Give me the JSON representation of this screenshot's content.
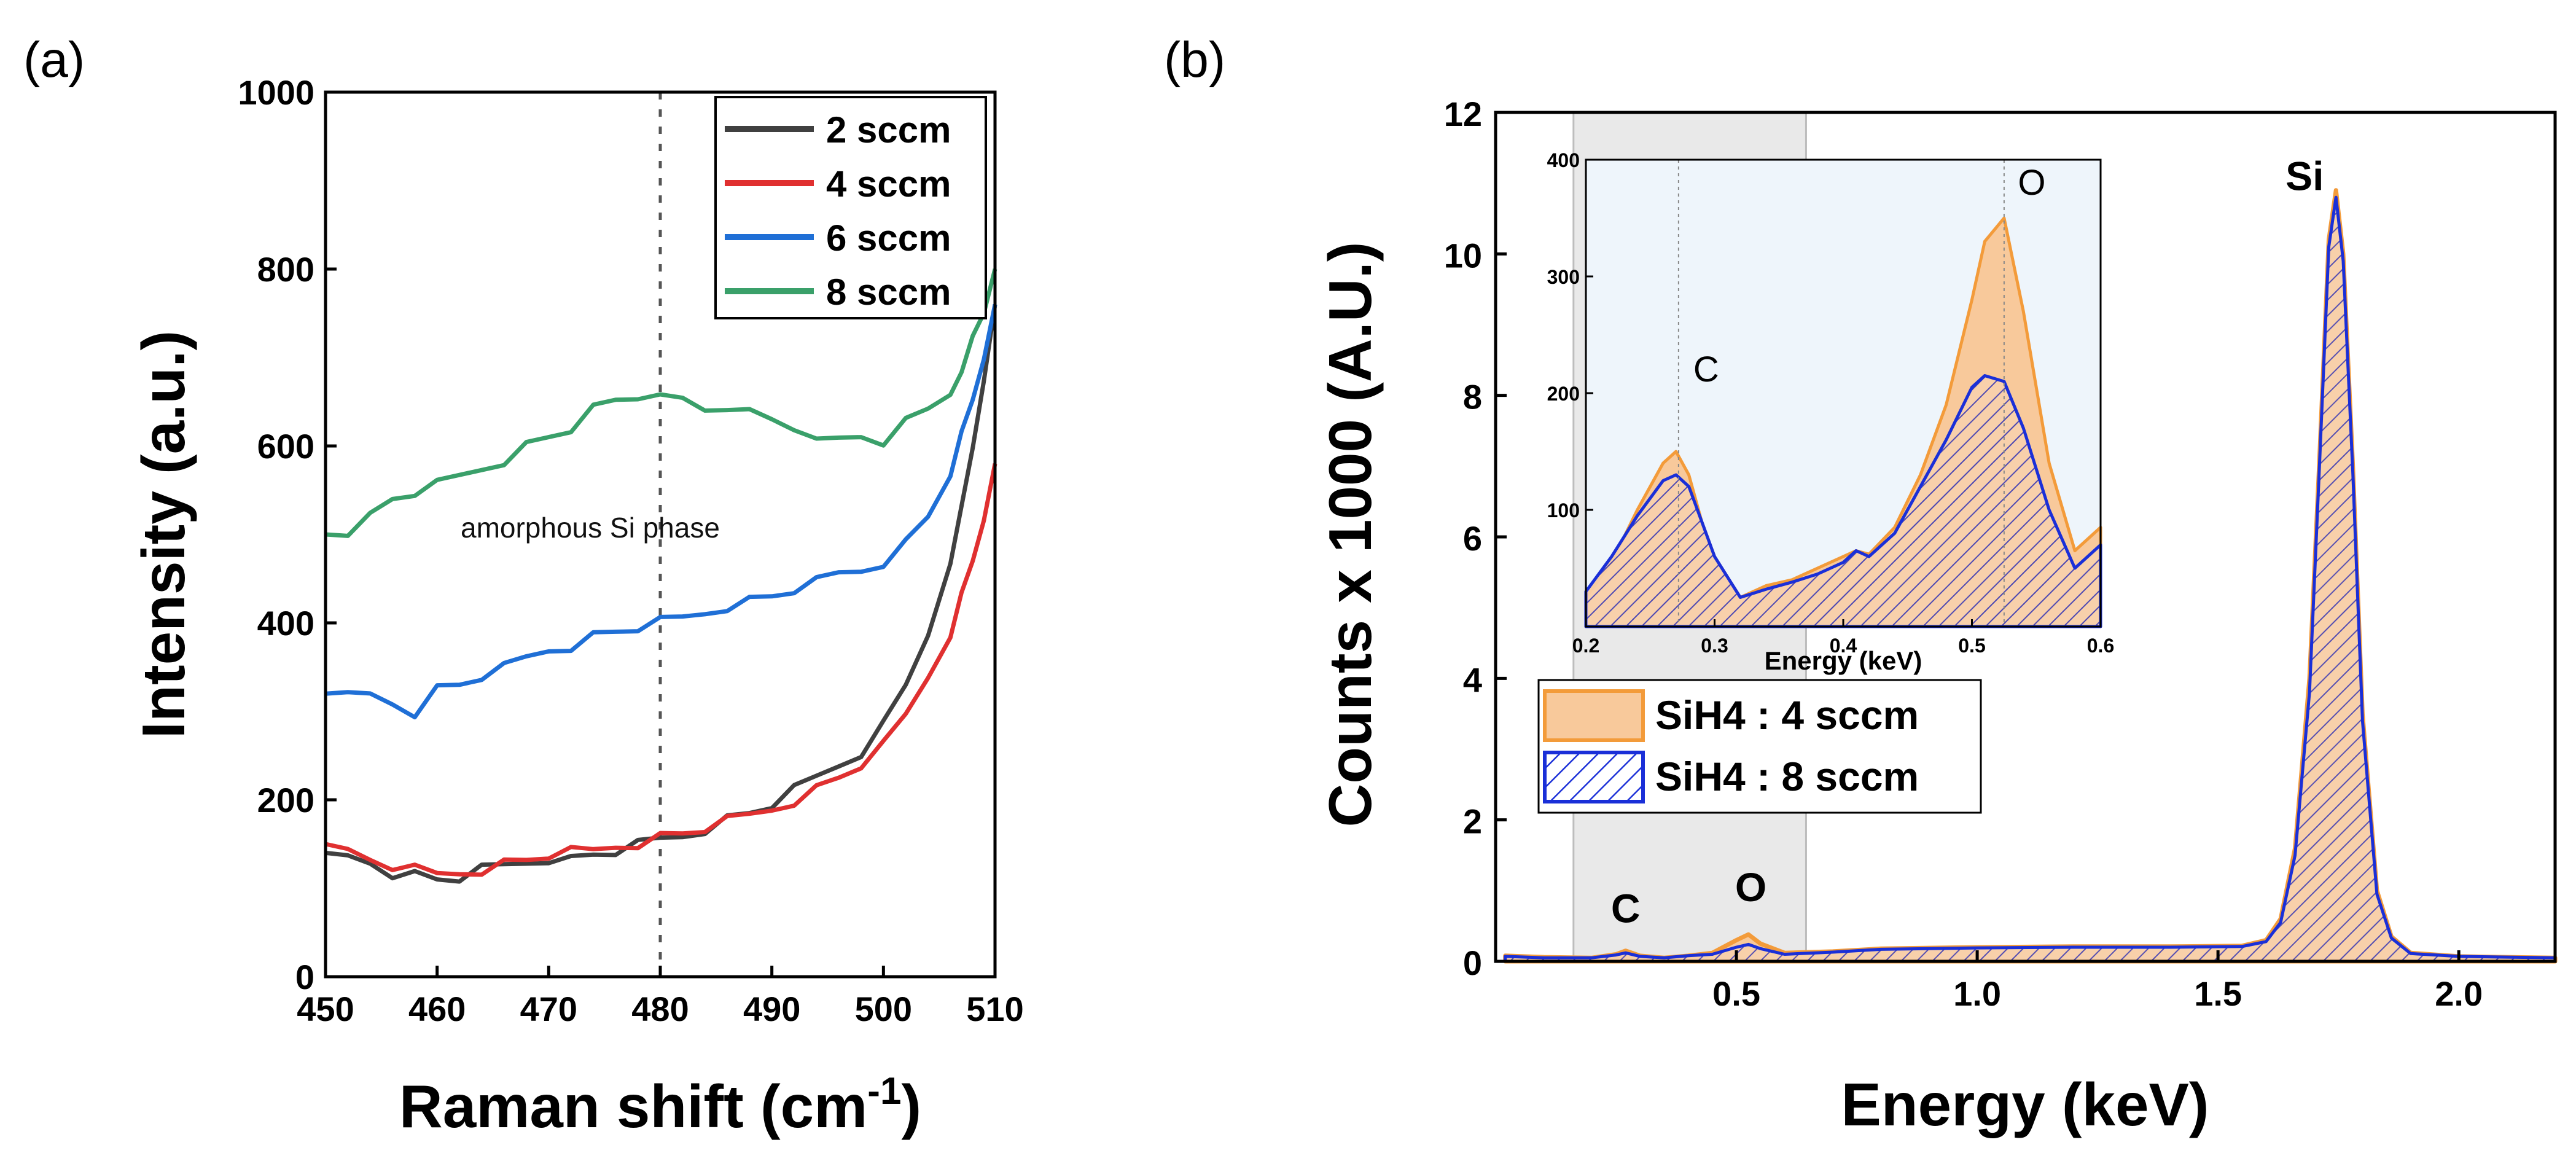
{
  "chart_data": [
    {
      "panel": "(a)",
      "type": "line",
      "xlabel": "Raman shift (cm",
      "xlabel_sup": "-1",
      "xlabel_end": ")",
      "ylabel": "Intensity (a.u.)",
      "xlim": [
        450,
        510
      ],
      "ylim": [
        0,
        1000
      ],
      "xticks": [
        450,
        460,
        470,
        480,
        490,
        500,
        510
      ],
      "yticks": [
        0,
        200,
        400,
        600,
        800,
        1000
      ],
      "annotation": "amorphous Si phase",
      "reference_line_x": 480,
      "legend_position": "top-right",
      "x": [
        450,
        452,
        454,
        456,
        458,
        460,
        462,
        464,
        466,
        468,
        470,
        472,
        474,
        476,
        478,
        480,
        482,
        484,
        486,
        488,
        490,
        492,
        494,
        496,
        498,
        500,
        502,
        504,
        506,
        507,
        508,
        509,
        510
      ],
      "series": [
        {
          "name": "2 sccm",
          "color": "#404040",
          "values": [
            140,
            135,
            130,
            118,
            115,
            110,
            112,
            120,
            125,
            130,
            135,
            132,
            138,
            142,
            148,
            155,
            160,
            168,
            178,
            185,
            195,
            210,
            225,
            240,
            255,
            285,
            330,
            390,
            460,
            530,
            600,
            680,
            760
          ]
        },
        {
          "name": "4 sccm",
          "color": "#e03030",
          "values": [
            150,
            140,
            132,
            125,
            120,
            115,
            118,
            122,
            128,
            132,
            138,
            140,
            142,
            148,
            152,
            158,
            162,
            168,
            175,
            182,
            190,
            200,
            212,
            225,
            240,
            260,
            295,
            340,
            390,
            430,
            470,
            520,
            580
          ]
        },
        {
          "name": "6 sccm",
          "color": "#1f6fd6",
          "values": [
            320,
            315,
            318,
            310,
            300,
            325,
            330,
            340,
            348,
            360,
            370,
            375,
            385,
            390,
            395,
            400,
            405,
            412,
            420,
            425,
            430,
            438,
            445,
            455,
            460,
            470,
            490,
            520,
            570,
            610,
            650,
            700,
            760
          ]
        },
        {
          "name": "8 sccm",
          "color": "#3aa06a",
          "values": [
            500,
            505,
            520,
            540,
            548,
            555,
            565,
            575,
            585,
            600,
            610,
            620,
            640,
            650,
            655,
            665,
            650,
            640,
            645,
            635,
            628,
            620,
            615,
            605,
            610,
            605,
            625,
            640,
            660,
            690,
            720,
            750,
            800
          ]
        }
      ]
    },
    {
      "panel": "(b)",
      "type": "area",
      "xlabel": "Energy (keV)",
      "ylabel": "Counts x 1000 (A.U.)",
      "xlim": [
        0.0,
        2.2
      ],
      "ylim": [
        0,
        12
      ],
      "xticks": [
        0.5,
        1.0,
        1.5,
        2.0
      ],
      "yticks": [
        0,
        2,
        4,
        6,
        8,
        10,
        12
      ],
      "peak_labels": [
        {
          "text": "C",
          "x": 0.27,
          "y": 0.55
        },
        {
          "text": "O",
          "x": 0.53,
          "y": 0.85
        },
        {
          "text": "Si",
          "x": 1.68,
          "y": 10.9
        }
      ],
      "highlight_range_x": [
        0.2,
        0.6
      ],
      "legend_position": "center-left",
      "x": [
        0.02,
        0.1,
        0.2,
        0.25,
        0.27,
        0.3,
        0.35,
        0.4,
        0.45,
        0.5,
        0.525,
        0.55,
        0.6,
        0.7,
        0.8,
        1.0,
        1.2,
        1.4,
        1.55,
        1.6,
        1.63,
        1.66,
        1.69,
        1.71,
        1.73,
        1.745,
        1.76,
        1.78,
        1.8,
        1.83,
        1.86,
        1.9,
        2.0,
        2.1,
        2.2
      ],
      "series": [
        {
          "name": "SiH4 : 4 sccm",
          "fill": "#f8c99b",
          "edge": "#f39b3a",
          "values": [
            0.08,
            0.06,
            0.05,
            0.1,
            0.15,
            0.08,
            0.05,
            0.08,
            0.12,
            0.3,
            0.38,
            0.25,
            0.12,
            0.14,
            0.18,
            0.2,
            0.21,
            0.21,
            0.22,
            0.3,
            0.6,
            1.6,
            4.0,
            7.0,
            10.2,
            10.9,
            10.0,
            7.0,
            3.5,
            1.0,
            0.35,
            0.12,
            0.07,
            0.06,
            0.05
          ]
        },
        {
          "name": "SiH4 : 8 sccm",
          "fill": "#8888d8",
          "edge": "#1a2fd8",
          "values": [
            0.07,
            0.05,
            0.05,
            0.09,
            0.12,
            0.07,
            0.05,
            0.08,
            0.1,
            0.2,
            0.24,
            0.18,
            0.1,
            0.13,
            0.17,
            0.19,
            0.2,
            0.2,
            0.21,
            0.28,
            0.55,
            1.5,
            3.8,
            6.9,
            10.1,
            10.8,
            9.9,
            6.9,
            3.4,
            0.95,
            0.33,
            0.11,
            0.07,
            0.06,
            0.05
          ]
        }
      ],
      "inset": {
        "xlabel": "Energy (keV)",
        "xlim": [
          0.2,
          0.6
        ],
        "ylim": [
          0,
          400
        ],
        "xticks": [
          0.2,
          0.3,
          0.4,
          0.5,
          0.6
        ],
        "yticks": [
          100,
          200,
          300,
          400
        ],
        "peak_labels": [
          {
            "text": "C",
            "x": 0.272,
            "y": 210
          },
          {
            "text": "O",
            "x": 0.525,
            "y": 370
          }
        ],
        "reference_lines_x": [
          0.272,
          0.525
        ],
        "x": [
          0.2,
          0.22,
          0.24,
          0.26,
          0.27,
          0.28,
          0.29,
          0.3,
          0.32,
          0.34,
          0.36,
          0.38,
          0.4,
          0.41,
          0.42,
          0.44,
          0.46,
          0.48,
          0.5,
          0.51,
          0.525,
          0.54,
          0.56,
          0.58,
          0.6
        ],
        "series": [
          {
            "name": "SiH4 : 4 sccm",
            "values": [
              25,
              55,
              100,
              140,
              150,
              130,
              90,
              60,
              25,
              35,
              40,
              50,
              60,
              65,
              62,
              85,
              130,
              190,
              280,
              330,
              350,
              270,
              140,
              65,
              85
            ]
          },
          {
            "name": "SiH4 : 8 sccm",
            "values": [
              30,
              60,
              95,
              125,
              130,
              120,
              90,
              60,
              25,
              32,
              38,
              45,
              55,
              65,
              60,
              80,
              120,
              160,
              205,
              215,
              210,
              170,
              100,
              50,
              70
            ]
          }
        ]
      }
    }
  ]
}
